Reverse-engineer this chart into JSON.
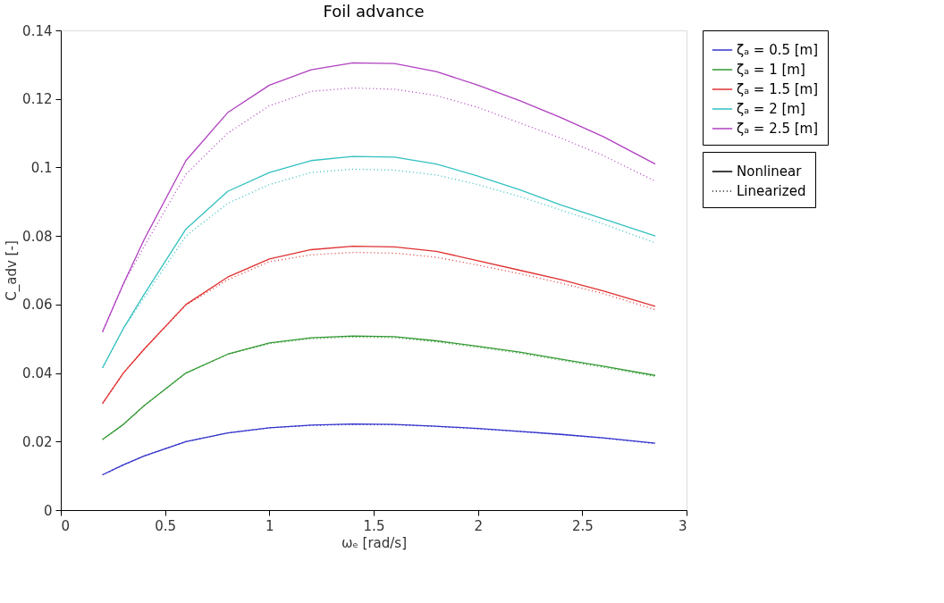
{
  "chart_data": {
    "type": "line",
    "title": "Foil advance",
    "xlabel": "ωₑ [rad/s]",
    "ylabel": "C_adv [-]",
    "x": [
      0.2,
      0.3,
      0.4,
      0.6,
      0.8,
      1.0,
      1.2,
      1.4,
      1.6,
      1.8,
      2.0,
      2.2,
      2.4,
      2.6,
      2.85
    ],
    "series": [
      {
        "name": "ζₐ = 0.5 [m]",
        "color": "#3333cc",
        "line_style": "solid",
        "values": [
          0.0103,
          0.0132,
          0.0158,
          0.02,
          0.0225,
          0.024,
          0.0248,
          0.0251,
          0.025,
          0.0245,
          0.0238,
          0.023,
          0.0221,
          0.0211,
          0.0195
        ]
      },
      {
        "name": "ζₐ = 1 [m]",
        "color": "#339933",
        "line_style": "solid",
        "values": [
          0.0206,
          0.025,
          0.0305,
          0.04,
          0.0455,
          0.0488,
          0.0503,
          0.0508,
          0.0506,
          0.0494,
          0.0478,
          0.0461,
          0.044,
          0.042,
          0.0393
        ]
      },
      {
        "name": "ζₐ = 1.5 [m]",
        "color": "#e03030",
        "line_style": "solid",
        "values": [
          0.0311,
          0.04,
          0.047,
          0.06,
          0.068,
          0.0733,
          0.076,
          0.077,
          0.0768,
          0.0755,
          0.0728,
          0.07,
          0.0672,
          0.064,
          0.0595
        ]
      },
      {
        "name": "ζₐ = 2 [m]",
        "color": "#33c0c0",
        "line_style": "solid",
        "values": [
          0.0415,
          0.053,
          0.063,
          0.082,
          0.093,
          0.0985,
          0.102,
          0.1032,
          0.103,
          0.101,
          0.0975,
          0.0935,
          0.089,
          0.085,
          0.08
        ]
      },
      {
        "name": "ζₐ = 2.5 [m]",
        "color": "#b040c0",
        "line_style": "solid",
        "values": [
          0.052,
          0.066,
          0.079,
          0.102,
          0.116,
          0.124,
          0.1285,
          0.1305,
          0.1303,
          0.128,
          0.124,
          0.1195,
          0.1145,
          0.109,
          0.101
        ]
      },
      {
        "color": "#3333cc",
        "line_style": "dotted",
        "values": [
          0.0103,
          0.0132,
          0.0158,
          0.02,
          0.0225,
          0.024,
          0.0247,
          0.025,
          0.0249,
          0.0244,
          0.0237,
          0.0229,
          0.022,
          0.021,
          0.0194
        ]
      },
      {
        "color": "#339933",
        "line_style": "dotted",
        "values": [
          0.0206,
          0.025,
          0.0305,
          0.04,
          0.0454,
          0.0486,
          0.05,
          0.0505,
          0.0503,
          0.0491,
          0.0475,
          0.0458,
          0.0437,
          0.0417,
          0.039
        ]
      },
      {
        "color": "#e03030",
        "line_style": "dotted",
        "values": [
          0.0311,
          0.04,
          0.047,
          0.0598,
          0.0672,
          0.0725,
          0.0745,
          0.0752,
          0.075,
          0.0738,
          0.0715,
          0.069,
          0.0662,
          0.0632,
          0.0585
        ]
      },
      {
        "color": "#33c0c0",
        "line_style": "dotted",
        "values": [
          0.0415,
          0.053,
          0.062,
          0.08,
          0.0895,
          0.095,
          0.0985,
          0.0995,
          0.0992,
          0.0978,
          0.095,
          0.0915,
          0.0875,
          0.0835,
          0.078
        ]
      },
      {
        "color": "#b040c0",
        "line_style": "dotted",
        "values": [
          0.052,
          0.066,
          0.077,
          0.098,
          0.11,
          0.118,
          0.1222,
          0.1232,
          0.1228,
          0.121,
          0.1175,
          0.113,
          0.1085,
          0.1035,
          0.096
        ]
      }
    ],
    "annotations": [
      "Nonlinear",
      "Linearized"
    ],
    "xlim": [
      0,
      3
    ],
    "xticks": [
      0,
      0.5,
      1,
      1.5,
      2,
      2.5,
      3
    ],
    "ylim": [
      0,
      0.14
    ],
    "yticks": [
      0,
      0.02,
      0.04,
      0.06,
      0.08,
      0.1,
      0.12,
      0.14
    ],
    "grid": false,
    "legend": "top right",
    "marker": "none"
  }
}
